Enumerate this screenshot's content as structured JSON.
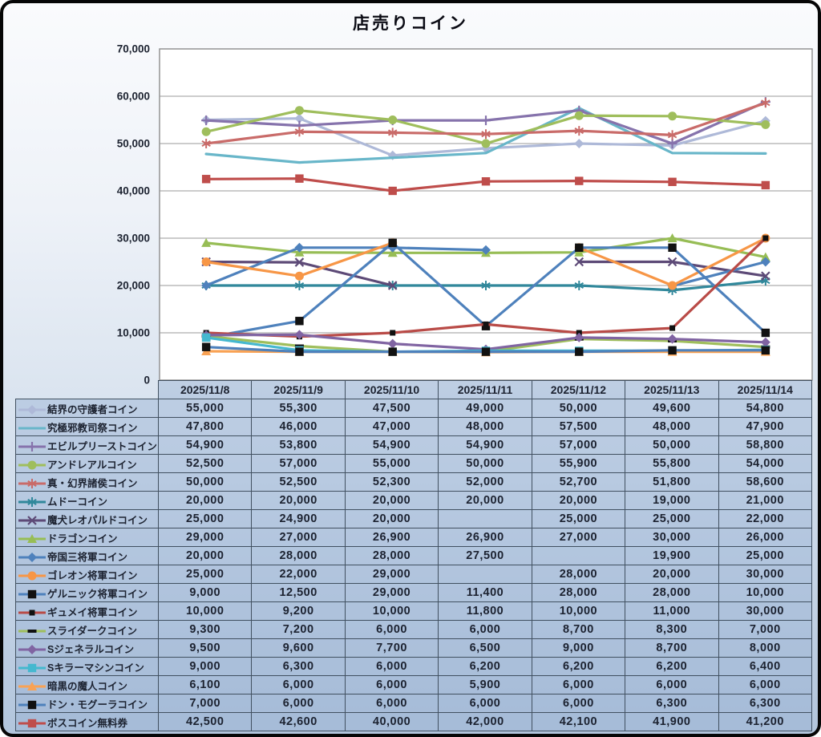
{
  "chart_data": {
    "type": "line",
    "title": "店売りコイン",
    "categories": [
      "2025/11/8",
      "2025/11/9",
      "2025/11/10",
      "2025/11/11",
      "2025/11/12",
      "2025/11/13",
      "2025/11/14"
    ],
    "xlabel": "",
    "ylabel": "",
    "ylim": [
      0,
      70000
    ],
    "ytick_interval": 10000,
    "yticks": [
      "0",
      "10,000",
      "20,000",
      "30,000",
      "40,000",
      "50,000",
      "60,000",
      "70,000"
    ],
    "grid": true,
    "legend_position": "data-table-left-column",
    "plot_bg": "#ffffff",
    "grid_color": "#9a9a9a",
    "plot_border_color": "#8c8c8c",
    "series": [
      {
        "name": "結界の守護者コイン",
        "color": "#aeb9d8",
        "marker": "diamond",
        "values": [
          55000,
          55300,
          47500,
          49000,
          50000,
          49600,
          54800
        ]
      },
      {
        "name": "究極邪教司祭コイン",
        "color": "#68b6c9",
        "marker": "none",
        "values": [
          47800,
          46000,
          47000,
          48000,
          57500,
          48000,
          47900
        ]
      },
      {
        "name": "エビルプリーストコイン",
        "color": "#8673ac",
        "marker": "plus",
        "values": [
          54900,
          53800,
          54900,
          54900,
          57000,
          50000,
          58800
        ]
      },
      {
        "name": "アンドレアルコイン",
        "color": "#9fbe5c",
        "marker": "circle",
        "values": [
          52500,
          57000,
          55000,
          50000,
          55900,
          55800,
          54000
        ]
      },
      {
        "name": "真・幻界諸侯コイン",
        "color": "#c96b69",
        "marker": "star",
        "values": [
          50000,
          52500,
          52300,
          52000,
          52700,
          51800,
          58600
        ]
      },
      {
        "name": "ムドーコイン",
        "color": "#31889b",
        "marker": "star",
        "values": [
          20000,
          20000,
          20000,
          20000,
          20000,
          19000,
          21000
        ]
      },
      {
        "name": "魔犬レオパルドコイン",
        "color": "#5d4a77",
        "marker": "x",
        "values": [
          25000,
          24900,
          20000,
          null,
          25000,
          25000,
          22000
        ]
      },
      {
        "name": "ドラゴンコイン",
        "color": "#97bd55",
        "marker": "triangle",
        "values": [
          29000,
          27000,
          26900,
          26900,
          27000,
          30000,
          26000
        ]
      },
      {
        "name": "帝国三将軍コイン",
        "color": "#4e81bc",
        "marker": "diamond",
        "values": [
          20000,
          28000,
          28000,
          27500,
          null,
          19900,
          25000
        ]
      },
      {
        "name": "ゴレオン将軍コイン",
        "color": "#f79646",
        "marker": "circle",
        "values": [
          25000,
          22000,
          29000,
          null,
          28000,
          20000,
          30000
        ]
      },
      {
        "name": "ゲルニック将軍コイン",
        "color": "#4e81bc",
        "marker": "square",
        "marker_color": "#111111",
        "values": [
          9000,
          12500,
          29000,
          11400,
          28000,
          28000,
          10000
        ]
      },
      {
        "name": "ギュメイ将軍コイン",
        "color": "#b94b47",
        "marker": "square-small",
        "marker_color": "#111111",
        "values": [
          10000,
          9200,
          10000,
          11800,
          10000,
          11000,
          30000
        ]
      },
      {
        "name": "スライダークコイン",
        "color": "#9fbe5c",
        "marker": "dash",
        "marker_color": "#111111",
        "values": [
          9300,
          7200,
          6000,
          6000,
          8700,
          8300,
          7000
        ]
      },
      {
        "name": "Sジェネラルコイン",
        "color": "#8064a2",
        "marker": "diamond",
        "values": [
          9500,
          9600,
          7700,
          6500,
          9000,
          8700,
          8000
        ]
      },
      {
        "name": "Sキラーマシンコイン",
        "color": "#45b8cf",
        "marker": "square",
        "values": [
          9000,
          6300,
          6000,
          6200,
          6200,
          6200,
          6400
        ]
      },
      {
        "name": "暗黒の魔人コイン",
        "color": "#f9a254",
        "marker": "triangle",
        "values": [
          6100,
          6000,
          6000,
          5900,
          6000,
          6000,
          6000
        ]
      },
      {
        "name": "ドン・モグーラコイン",
        "color": "#4e81bc",
        "marker": "square",
        "marker_color": "#111111",
        "values": [
          7000,
          6000,
          6000,
          6000,
          6000,
          6300,
          6300
        ]
      },
      {
        "name": "ボスコイン無料券",
        "color": "#bf4d4b",
        "marker": "square",
        "values": [
          42500,
          42600,
          40000,
          42000,
          42100,
          41900,
          41200
        ]
      }
    ]
  }
}
